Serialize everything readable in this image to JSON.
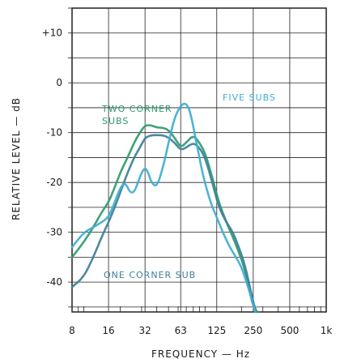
{
  "chart_data": {
    "type": "line",
    "title": "",
    "xlabel": "FREQUENCY — Hz",
    "ylabel": "RELATIVE LEVEL — dB",
    "x_scale": "log",
    "xlim": [
      8,
      1000
    ],
    "ylim": [
      -46,
      15
    ],
    "grid": true,
    "x_ticks": [
      8,
      16,
      32,
      63,
      125,
      250,
      500,
      1000
    ],
    "x_tick_labels": [
      "8",
      "16",
      "32",
      "63",
      "125",
      "250",
      "500",
      "1k"
    ],
    "y_ticks": [
      10,
      0,
      -10,
      -20,
      -30,
      -40
    ],
    "y_tick_labels": [
      "+10",
      "0",
      "-10",
      "-20",
      "-30",
      "-40"
    ],
    "annotations": [
      "FIVE SUBS",
      "TWO CORNER",
      "SUBS",
      "ONE CORNER SUB"
    ],
    "series": [
      {
        "color": "#2f9a6e",
        "points": [
          [
            8,
            -35
          ],
          [
            10,
            -32
          ],
          [
            12,
            -29
          ],
          [
            14,
            -26
          ],
          [
            16,
            -24
          ],
          [
            18,
            -21
          ],
          [
            20,
            -18
          ],
          [
            23,
            -15
          ],
          [
            26,
            -12
          ],
          [
            29,
            -10
          ],
          [
            32,
            -8.5
          ],
          [
            36,
            -8.5
          ],
          [
            40,
            -9
          ],
          [
            45,
            -9
          ],
          [
            50,
            -9.5
          ],
          [
            56,
            -11
          ],
          [
            63,
            -13
          ],
          [
            70,
            -12
          ],
          [
            80,
            -10.5
          ],
          [
            90,
            -12
          ],
          [
            100,
            -14
          ],
          [
            115,
            -19
          ],
          [
            130,
            -24
          ],
          [
            150,
            -28
          ],
          [
            170,
            -31
          ],
          [
            190,
            -34
          ],
          [
            210,
            -37
          ],
          [
            230,
            -41
          ],
          [
            250,
            -45
          ],
          [
            270,
            -46
          ]
        ]
      },
      {
        "color": "#3e7f99",
        "points": [
          [
            8,
            -41
          ],
          [
            10,
            -39
          ],
          [
            12,
            -35
          ],
          [
            14,
            -31
          ],
          [
            16,
            -28
          ],
          [
            18,
            -25
          ],
          [
            20,
            -22
          ],
          [
            23,
            -18
          ],
          [
            26,
            -15
          ],
          [
            29,
            -13
          ],
          [
            32,
            -11
          ],
          [
            36,
            -10.5
          ],
          [
            40,
            -10.5
          ],
          [
            45,
            -10.5
          ],
          [
            50,
            -11
          ],
          [
            56,
            -12
          ],
          [
            63,
            -13.5
          ],
          [
            70,
            -13
          ],
          [
            80,
            -12
          ],
          [
            90,
            -13
          ],
          [
            100,
            -15
          ],
          [
            115,
            -20
          ],
          [
            130,
            -25
          ],
          [
            150,
            -28
          ],
          [
            170,
            -30
          ],
          [
            190,
            -33
          ],
          [
            210,
            -36
          ],
          [
            230,
            -40
          ],
          [
            250,
            -44
          ],
          [
            265,
            -46
          ]
        ]
      },
      {
        "color": "#3faed0",
        "points": [
          [
            8,
            -33
          ],
          [
            10,
            -30
          ],
          [
            12,
            -29
          ],
          [
            14,
            -28
          ],
          [
            16,
            -27
          ],
          [
            18,
            -24
          ],
          [
            20,
            -21
          ],
          [
            22,
            -20
          ],
          [
            24,
            -22
          ],
          [
            26,
            -22
          ],
          [
            28,
            -20
          ],
          [
            30,
            -18
          ],
          [
            32,
            -17
          ],
          [
            34,
            -18
          ],
          [
            36,
            -20
          ],
          [
            40,
            -21
          ],
          [
            45,
            -17
          ],
          [
            50,
            -12
          ],
          [
            56,
            -7
          ],
          [
            63,
            -4.5
          ],
          [
            70,
            -4
          ],
          [
            76,
            -6
          ],
          [
            85,
            -12
          ],
          [
            95,
            -18
          ],
          [
            105,
            -22
          ],
          [
            115,
            -25
          ],
          [
            125,
            -27
          ],
          [
            140,
            -30
          ],
          [
            160,
            -33
          ],
          [
            180,
            -35
          ],
          [
            200,
            -37
          ],
          [
            220,
            -40
          ],
          [
            240,
            -43
          ],
          [
            260,
            -46
          ]
        ]
      }
    ]
  }
}
